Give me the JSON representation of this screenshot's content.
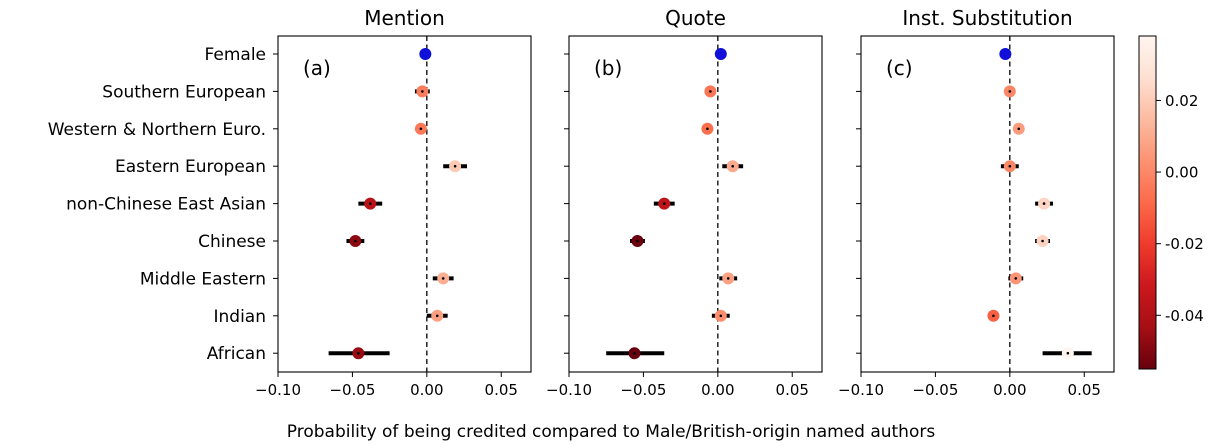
{
  "chart_data": {
    "type": "scatter",
    "subtype": "dot-plot with error bars",
    "categories": [
      "Female",
      "Southern European",
      "Western & Northern Euro.",
      "Eastern European",
      "non-Chinese East Asian",
      "Chinese",
      "Middle Eastern",
      "Indian",
      "African"
    ],
    "xlabel": "Probability of being credited compared to Male/British-origin named authors",
    "xlim": [
      -0.1,
      0.07
    ],
    "xticks": [
      -0.1,
      -0.05,
      0.0,
      0.05
    ],
    "xtick_labels": [
      "−0.10",
      "−0.05",
      "0.00",
      "0.05"
    ],
    "reference_line": {
      "x": 0,
      "style": "dashed"
    },
    "female_color": "#1010d8",
    "colorbar": {
      "range": [
        -0.055,
        0.038
      ],
      "ticks": [
        0.02,
        0.0,
        -0.02,
        -0.04
      ],
      "tick_labels": [
        "0.02",
        "0.00",
        "-0.02",
        "-0.04"
      ],
      "colors": [
        "#67000d",
        "#a50f15",
        "#cb181d",
        "#ef3b2c",
        "#fb6a4a",
        "#fc9272",
        "#fcbba1",
        "#fee0d2",
        "#fff5f0"
      ]
    },
    "panels": [
      {
        "title": "Mention",
        "label": "(a)",
        "points": [
          {
            "category": "Female",
            "value": -0.001,
            "ci": [
              -0.002,
              0.0
            ]
          },
          {
            "category": "Southern European",
            "value": -0.003,
            "ci": [
              -0.008,
              0.002
            ]
          },
          {
            "category": "Western & Northern Euro.",
            "value": -0.004,
            "ci": [
              -0.007,
              -0.001
            ]
          },
          {
            "category": "Eastern European",
            "value": 0.019,
            "ci": [
              0.011,
              0.027
            ]
          },
          {
            "category": "non-Chinese East Asian",
            "value": -0.038,
            "ci": [
              -0.046,
              -0.03
            ]
          },
          {
            "category": "Chinese",
            "value": -0.048,
            "ci": [
              -0.054,
              -0.042
            ]
          },
          {
            "category": "Middle Eastern",
            "value": 0.011,
            "ci": [
              0.004,
              0.018
            ]
          },
          {
            "category": "Indian",
            "value": 0.007,
            "ci": [
              0.0,
              0.014
            ]
          },
          {
            "category": "African",
            "value": -0.046,
            "ci": [
              -0.066,
              -0.025
            ]
          }
        ]
      },
      {
        "title": "Quote",
        "label": "(b)",
        "points": [
          {
            "category": "Female",
            "value": 0.002,
            "ci": [
              0.001,
              0.003
            ]
          },
          {
            "category": "Southern European",
            "value": -0.005,
            "ci": [
              -0.008,
              -0.002
            ]
          },
          {
            "category": "Western & Northern Euro.",
            "value": -0.007,
            "ci": [
              -0.009,
              -0.005
            ]
          },
          {
            "category": "Eastern European",
            "value": 0.01,
            "ci": [
              0.003,
              0.017
            ]
          },
          {
            "category": "non-Chinese East Asian",
            "value": -0.036,
            "ci": [
              -0.043,
              -0.029
            ]
          },
          {
            "category": "Chinese",
            "value": -0.054,
            "ci": [
              -0.059,
              -0.049
            ]
          },
          {
            "category": "Middle Eastern",
            "value": 0.007,
            "ci": [
              0.001,
              0.013
            ]
          },
          {
            "category": "Indian",
            "value": 0.002,
            "ci": [
              -0.004,
              0.008
            ]
          },
          {
            "category": "African",
            "value": -0.056,
            "ci": [
              -0.075,
              -0.036
            ]
          }
        ]
      },
      {
        "title": "Inst. Substitution",
        "label": "(c)",
        "points": [
          {
            "category": "Female",
            "value": -0.003,
            "ci": [
              -0.004,
              -0.002
            ]
          },
          {
            "category": "Southern European",
            "value": 0.0,
            "ci": [
              -0.002,
              0.002
            ]
          },
          {
            "category": "Western & Northern Euro.",
            "value": 0.006,
            "ci": [
              0.005,
              0.007
            ]
          },
          {
            "category": "Eastern European",
            "value": 0.0,
            "ci": [
              -0.006,
              0.006
            ]
          },
          {
            "category": "non-Chinese East Asian",
            "value": 0.023,
            "ci": [
              0.017,
              0.029
            ]
          },
          {
            "category": "Chinese",
            "value": 0.022,
            "ci": [
              0.017,
              0.027
            ]
          },
          {
            "category": "Middle Eastern",
            "value": 0.004,
            "ci": [
              -0.001,
              0.009
            ]
          },
          {
            "category": "Indian",
            "value": -0.011,
            "ci": [
              -0.014,
              -0.008
            ]
          },
          {
            "category": "African",
            "value": 0.039,
            "ci": [
              0.022,
              0.055
            ]
          }
        ]
      }
    ]
  }
}
